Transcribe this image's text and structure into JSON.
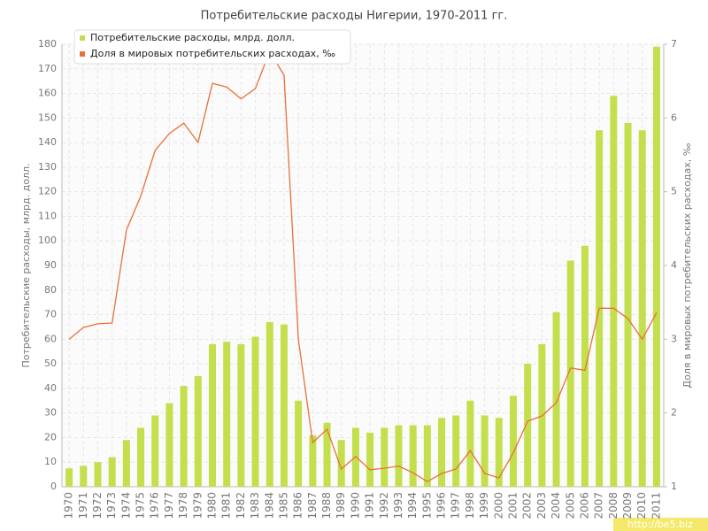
{
  "chart_data": {
    "type": "bar_line",
    "title": "Потребительские расходы Нигерии, 1970-2011 гг.",
    "y_label": "Потребительские расходы, млрд. долл.",
    "y2_label": "Доля в мировых потребительских расходах, ‰",
    "watermark": "http://be5.biz",
    "categories": [
      "1970",
      "1971",
      "1972",
      "1973",
      "1974",
      "1975",
      "1976",
      "1977",
      "1978",
      "1979",
      "1980",
      "1981",
      "1982",
      "1983",
      "1984",
      "1985",
      "1986",
      "1987",
      "1988",
      "1989",
      "1990",
      "1991",
      "1992",
      "1993",
      "1994",
      "1995",
      "1996",
      "1997",
      "1998",
      "1999",
      "2000",
      "2001",
      "2002",
      "2003",
      "2004",
      "2005",
      "2006",
      "2007",
      "2008",
      "2009",
      "2010",
      "2011"
    ],
    "series": [
      {
        "name": "Потребительские расходы, млрд. долл.",
        "type": "bar",
        "color": "#c3df4c",
        "values": [
          7.5,
          8.5,
          10,
          12,
          19,
          24,
          29,
          34,
          41,
          45,
          58,
          59,
          58,
          61,
          67,
          66,
          35,
          21,
          26,
          19,
          24,
          22,
          24,
          25,
          25,
          25,
          28,
          29,
          35,
          29,
          28,
          37,
          50,
          58,
          71,
          92,
          98,
          145,
          159,
          148,
          145,
          179
        ]
      },
      {
        "name": "Доля в мировых потребительских расходах, ‰",
        "type": "line",
        "axis": "y2",
        "color": "#e8703a",
        "values": [
          3.0,
          3.16,
          3.21,
          3.22,
          4.48,
          4.94,
          5.56,
          5.79,
          5.93,
          5.67,
          6.47,
          6.42,
          6.26,
          6.4,
          6.9,
          6.58,
          3.0,
          1.6,
          1.78,
          1.24,
          1.41,
          1.23,
          1.25,
          1.28,
          1.19,
          1.07,
          1.18,
          1.24,
          1.49,
          1.18,
          1.12,
          1.46,
          1.89,
          1.96,
          2.14,
          2.61,
          2.58,
          3.42,
          3.42,
          3.28,
          3.0,
          3.36
        ]
      }
    ],
    "ylim": [
      0,
      180
    ],
    "yticks": [
      0,
      10,
      20,
      30,
      40,
      50,
      60,
      70,
      80,
      90,
      100,
      110,
      120,
      130,
      140,
      150,
      160,
      170,
      180
    ],
    "y2lim": [
      1,
      7
    ],
    "y2ticks": [
      1,
      2,
      3,
      4,
      5,
      6,
      7
    ],
    "grid": true,
    "legend": "top-left"
  }
}
